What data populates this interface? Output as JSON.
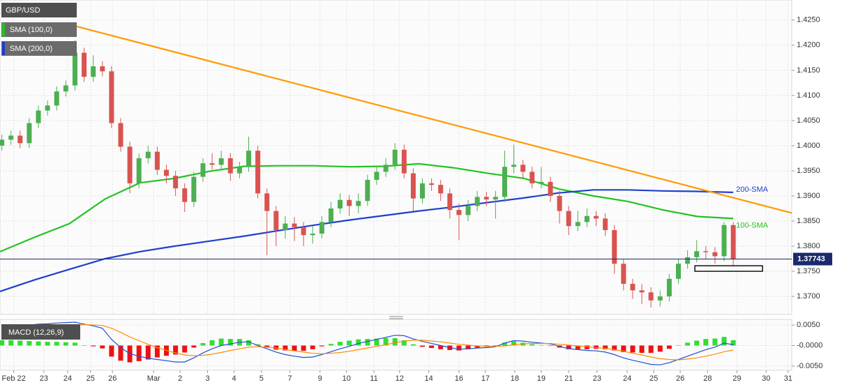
{
  "chart_data": [
    {
      "type": "candlestick",
      "title": "GBP/USD",
      "xlim": [
        -0.2,
        86.4
      ],
      "ylim": [
        1.3664,
        1.429
      ],
      "yticks": [
        {
          "value": 1.37,
          "label": "1.3700"
        },
        {
          "value": 1.375,
          "label": "1.3750"
        },
        {
          "value": 1.38,
          "label": "1.3800"
        },
        {
          "value": 1.385,
          "label": "1.3850"
        },
        {
          "value": 1.39,
          "label": "1.3900"
        },
        {
          "value": 1.395,
          "label": "1.3950"
        },
        {
          "value": 1.4,
          "label": "1.4000"
        },
        {
          "value": 1.405,
          "label": "1.4050"
        },
        {
          "value": 1.41,
          "label": "1.4100"
        },
        {
          "value": 1.415,
          "label": "1.4150"
        },
        {
          "value": 1.42,
          "label": "1.4200"
        },
        {
          "value": 1.425,
          "label": "1.4250"
        }
      ],
      "grid": true,
      "up_color": "#4caf50",
      "down_color": "#d9534f",
      "open": [
        1.4,
        1.4012,
        1.402,
        1.4005,
        1.4045,
        1.407,
        1.408,
        1.4108,
        1.412,
        1.4185,
        1.4137,
        1.4158,
        1.4148,
        1.4045,
        1.3998,
        1.3925,
        1.3975,
        1.3988,
        1.3952,
        1.394,
        1.3915,
        1.3888,
        1.3938,
        1.3965,
        1.3962,
        1.3975,
        1.3945,
        1.3958,
        1.399,
        1.3905,
        1.387,
        1.3832,
        1.3845,
        1.3838,
        1.3822,
        1.3825,
        1.3848,
        1.3875,
        1.3892,
        1.388,
        1.389,
        1.3932,
        1.3948,
        1.3962,
        1.3992,
        1.3945,
        1.3895,
        1.3925,
        1.3922,
        1.3905,
        1.3872,
        1.3862,
        1.388,
        1.3898,
        1.3893,
        1.3898,
        1.3958,
        1.3962,
        1.3948,
        1.3925,
        1.3928,
        1.39,
        1.387,
        1.384,
        1.3848,
        1.386,
        1.3855,
        1.3832,
        1.3765,
        1.3725,
        1.3712,
        1.3708,
        1.3692,
        1.37,
        1.3735,
        1.3765,
        1.3778,
        1.379,
        1.3788,
        1.378,
        1.3842
      ],
      "high": [
        1.4022,
        1.403,
        1.403,
        1.4055,
        1.408,
        1.409,
        1.4118,
        1.413,
        1.421,
        1.4195,
        1.418,
        1.4168,
        1.4158,
        1.4055,
        1.4008,
        1.3985,
        1.4,
        1.3998,
        1.3962,
        1.395,
        1.3925,
        1.3948,
        1.3975,
        1.3985,
        1.399,
        1.3985,
        1.3968,
        1.4018,
        1.4,
        1.3915,
        1.388,
        1.386,
        1.3858,
        1.3848,
        1.384,
        1.386,
        1.3888,
        1.3905,
        1.3902,
        1.3905,
        1.3942,
        1.3958,
        1.3975,
        1.4005,
        1.4002,
        1.3955,
        1.3935,
        1.3935,
        1.3932,
        1.3915,
        1.3885,
        1.3892,
        1.391,
        1.3908,
        1.391,
        1.399,
        1.4002,
        1.3972,
        1.3958,
        1.3958,
        1.3938,
        1.391,
        1.388,
        1.387,
        1.3875,
        1.387,
        1.3865,
        1.3842,
        1.3775,
        1.3735,
        1.3725,
        1.3718,
        1.3712,
        1.3745,
        1.3775,
        1.3792,
        1.3812,
        1.38,
        1.3798,
        1.3848,
        1.3848
      ],
      "low": [
        1.399,
        1.4002,
        1.3995,
        1.3995,
        1.4035,
        1.406,
        1.407,
        1.4098,
        1.411,
        1.4127,
        1.4127,
        1.4138,
        1.4035,
        1.3988,
        1.3905,
        1.3915,
        1.3965,
        1.3942,
        1.3925,
        1.39,
        1.3868,
        1.3878,
        1.3928,
        1.3952,
        1.3952,
        1.393,
        1.3935,
        1.3948,
        1.3895,
        1.3782,
        1.38,
        1.3815,
        1.381,
        1.38,
        1.3805,
        1.3815,
        1.3838,
        1.3865,
        1.386,
        1.3865,
        1.388,
        1.3922,
        1.3938,
        1.3952,
        1.3935,
        1.387,
        1.3885,
        1.391,
        1.389,
        1.3855,
        1.3812,
        1.385,
        1.387,
        1.388,
        1.3855,
        1.3888,
        1.3945,
        1.3935,
        1.3915,
        1.3915,
        1.3888,
        1.3845,
        1.3822,
        1.383,
        1.3838,
        1.384,
        1.382,
        1.3745,
        1.3712,
        1.3695,
        1.3685,
        1.3678,
        1.368,
        1.369,
        1.3725,
        1.3755,
        1.3768,
        1.3775,
        1.3765,
        1.377,
        1.376
      ],
      "close": [
        1.4012,
        1.402,
        1.4005,
        1.4045,
        1.407,
        1.408,
        1.4108,
        1.412,
        1.4185,
        1.4137,
        1.4158,
        1.4148,
        1.4045,
        1.3998,
        1.3925,
        1.3975,
        1.3988,
        1.3952,
        1.394,
        1.3915,
        1.3888,
        1.3938,
        1.3965,
        1.3962,
        1.3975,
        1.3945,
        1.3958,
        1.399,
        1.3905,
        1.387,
        1.3832,
        1.3845,
        1.3838,
        1.3822,
        1.3825,
        1.3848,
        1.3875,
        1.3892,
        1.388,
        1.389,
        1.3932,
        1.3948,
        1.3962,
        1.3992,
        1.3945,
        1.3895,
        1.3925,
        1.3922,
        1.3905,
        1.3872,
        1.3862,
        1.388,
        1.3898,
        1.3893,
        1.3898,
        1.3958,
        1.3962,
        1.3948,
        1.3925,
        1.3928,
        1.39,
        1.387,
        1.384,
        1.3848,
        1.386,
        1.3855,
        1.3832,
        1.3765,
        1.3725,
        1.3712,
        1.3708,
        1.3692,
        1.37,
        1.3735,
        1.3765,
        1.3778,
        1.379,
        1.3788,
        1.378,
        1.3842,
        1.3774
      ],
      "sma_x": [
        -0.2,
        3.6,
        7.4,
        11.3,
        15.1,
        18.9,
        22.7,
        26.5,
        30.3,
        34.2,
        38.0,
        41.8,
        45.6,
        49.4,
        53.2,
        57.1,
        60.9,
        64.7,
        68.5,
        72.3,
        76.1,
        80.0
      ],
      "series": [
        {
          "name": "SMA (100,0)",
          "label": "100-SMA",
          "color": "#22c322",
          "values": [
            1.3789,
            1.3818,
            1.3845,
            1.3894,
            1.3926,
            1.3935,
            1.3949,
            1.3959,
            1.396,
            1.396,
            1.3958,
            1.3959,
            1.3964,
            1.3956,
            1.3945,
            1.3935,
            1.3914,
            1.39,
            1.3889,
            1.3872,
            1.3859,
            1.3855
          ]
        },
        {
          "name": "SMA (200,0)",
          "label": "200-SMA",
          "color": "#1f3fcc",
          "values": [
            1.371,
            1.3733,
            1.3754,
            1.3775,
            1.3789,
            1.38,
            1.381,
            1.382,
            1.3831,
            1.3842,
            1.3852,
            1.3861,
            1.387,
            1.3878,
            1.3887,
            1.3896,
            1.3906,
            1.3912,
            1.3912,
            1.391,
            1.3909,
            1.3907
          ]
        }
      ],
      "trendline": {
        "x": [
          7.2,
          86.4
        ],
        "values": [
          1.4242,
          1.3866
        ],
        "color": "#ff9a00"
      },
      "support_zone": {
        "x": [
          75.8,
          83.2
        ],
        "values": [
          1.375,
          1.3761
        ]
      },
      "current_price": 1.37743,
      "current_color": "#1a2a6c"
    },
    {
      "type": "macd",
      "title": "MACD (12,26,9)",
      "xlim": [
        -0.2,
        86.4
      ],
      "ylim": [
        -0.00603,
        0.00638
      ],
      "yticks": [
        {
          "value": 0.005,
          "label": "0.0050"
        },
        {
          "value": 0,
          "label": "-0.0000"
        },
        {
          "value": -0.005,
          "label": "-0.0050"
        }
      ],
      "xticks": [
        {
          "value": 1.3,
          "label": "Feb 22"
        },
        {
          "value": 4.6,
          "label": "23"
        },
        {
          "value": 7.2,
          "label": "24"
        },
        {
          "value": 9.7,
          "label": "25"
        },
        {
          "value": 12.1,
          "label": "26"
        },
        {
          "value": 16.6,
          "label": "Mar"
        },
        {
          "value": 19.5,
          "label": "2"
        },
        {
          "value": 22.5,
          "label": "3"
        },
        {
          "value": 25.4,
          "label": "4"
        },
        {
          "value": 28.4,
          "label": "5"
        },
        {
          "value": 31.5,
          "label": "7"
        },
        {
          "value": 34.8,
          "label": "9"
        },
        {
          "value": 37.7,
          "label": "10"
        },
        {
          "value": 40.7,
          "label": "11"
        },
        {
          "value": 43.5,
          "label": "12"
        },
        {
          "value": 46.7,
          "label": "14"
        },
        {
          "value": 50.0,
          "label": "16"
        },
        {
          "value": 52.9,
          "label": "17"
        },
        {
          "value": 56.1,
          "label": "18"
        },
        {
          "value": 59.0,
          "label": "19"
        },
        {
          "value": 62.0,
          "label": "21"
        },
        {
          "value": 65.1,
          "label": "23"
        },
        {
          "value": 68.4,
          "label": "24"
        },
        {
          "value": 71.3,
          "label": "25"
        },
        {
          "value": 74.2,
          "label": "26"
        },
        {
          "value": 77.2,
          "label": "28"
        },
        {
          "value": 80.4,
          "label": "29"
        },
        {
          "value": 83.6,
          "label": "30"
        },
        {
          "value": 86.0,
          "label": "31"
        }
      ],
      "pos_color": "#33dd33",
      "neg_color": "#ee1111",
      "histogram": [
        0.0013,
        0.0013,
        0.0012,
        0.0011,
        0.001,
        0.0009,
        0.0009,
        0.0008,
        0.0007,
        0.0001,
        -0.0002,
        -0.0007,
        -0.0027,
        -0.0037,
        -0.0041,
        -0.0038,
        -0.0034,
        -0.0029,
        -0.0025,
        -0.0022,
        -0.0017,
        -0.0005,
        0.0006,
        0.0013,
        0.0017,
        0.0016,
        0.0016,
        0.0013,
        0.0003,
        -0.0004,
        -0.001,
        -0.0012,
        -0.0013,
        -0.0013,
        -0.0009,
        -0.0002,
        0.0004,
        0.0009,
        0.0012,
        0.0015,
        0.0016,
        0.0017,
        0.0018,
        0.0018,
        0.0013,
        0.0003,
        -0.0003,
        -0.0006,
        -0.0009,
        -0.0011,
        -0.0012,
        -0.0009,
        -0.0005,
        -0.0003,
        -0.0001,
        0.0007,
        0.001,
        0.0007,
        0.0003,
        0.0001,
        -0.0001,
        -0.0005,
        -0.0009,
        -0.0009,
        -0.0009,
        -0.0008,
        -0.0009,
        -0.0012,
        -0.0016,
        -0.0017,
        -0.0018,
        -0.0018,
        -0.0015,
        -0.0008,
        0.0001,
        0.0007,
        0.0012,
        0.0016,
        0.0017,
        0.0021,
        0.0013
      ],
      "series": [
        {
          "color": "#1f4fd6",
          "values": [
            0.0043,
            0.0046,
            0.0048,
            0.005,
            0.0052,
            0.0053,
            0.0055,
            0.0056,
            0.0057,
            0.0052,
            0.0048,
            0.0042,
            0.0015,
            -0.0005,
            -0.002,
            -0.0026,
            -0.0031,
            -0.0034,
            -0.0037,
            -0.004,
            -0.004,
            -0.003,
            -0.0018,
            -0.0008,
            0.0,
            0.0004,
            0.0008,
            0.0009,
            0.0,
            -0.0008,
            -0.0016,
            -0.0022,
            -0.0026,
            -0.0029,
            -0.0028,
            -0.0022,
            -0.0015,
            -0.0008,
            -0.0002,
            0.0005,
            0.001,
            0.0015,
            0.002,
            0.0025,
            0.0024,
            0.0016,
            0.001,
            0.0005,
            0.0,
            -0.0005,
            -0.0009,
            -0.0008,
            -0.0006,
            -0.0005,
            -0.0003,
            0.0006,
            0.0012,
            0.0011,
            0.0008,
            0.0006,
            0.0004,
            -0.0002,
            -0.0008,
            -0.001,
            -0.0012,
            -0.0013,
            -0.0016,
            -0.0022,
            -0.003,
            -0.0036,
            -0.0041,
            -0.0046,
            -0.0047,
            -0.0042,
            -0.0034,
            -0.0026,
            -0.0018,
            -0.001,
            -0.0004,
            0.0006,
            0.0002
          ]
        },
        {
          "color": "#ff8c00",
          "values": [
            0.003,
            0.0033,
            0.0036,
            0.0039,
            0.0042,
            0.0044,
            0.0046,
            0.0048,
            0.005,
            0.0051,
            0.005,
            0.0049,
            0.0042,
            0.0032,
            0.0021,
            0.0012,
            0.0003,
            -0.0005,
            -0.0012,
            -0.0018,
            -0.0023,
            -0.0025,
            -0.0024,
            -0.0021,
            -0.0017,
            -0.0012,
            -0.0008,
            -0.0004,
            -0.0003,
            -0.0004,
            -0.0006,
            -0.001,
            -0.0013,
            -0.0016,
            -0.0019,
            -0.002,
            -0.0019,
            -0.0017,
            -0.0014,
            -0.001,
            -0.0006,
            -0.0002,
            0.0002,
            0.0007,
            0.0011,
            0.0013,
            0.0013,
            0.0011,
            0.0009,
            0.0006,
            0.0003,
            0.0001,
            -0.0001,
            -0.0002,
            -0.0002,
            -0.0001,
            0.0002,
            0.0004,
            0.0005,
            0.0005,
            0.0005,
            0.0003,
            0.0001,
            -0.0001,
            -0.0003,
            -0.0005,
            -0.0007,
            -0.001,
            -0.0014,
            -0.0019,
            -0.0023,
            -0.0028,
            -0.0032,
            -0.0034,
            -0.0035,
            -0.0033,
            -0.003,
            -0.0026,
            -0.0021,
            -0.0015,
            -0.0011
          ]
        }
      ]
    }
  ]
}
